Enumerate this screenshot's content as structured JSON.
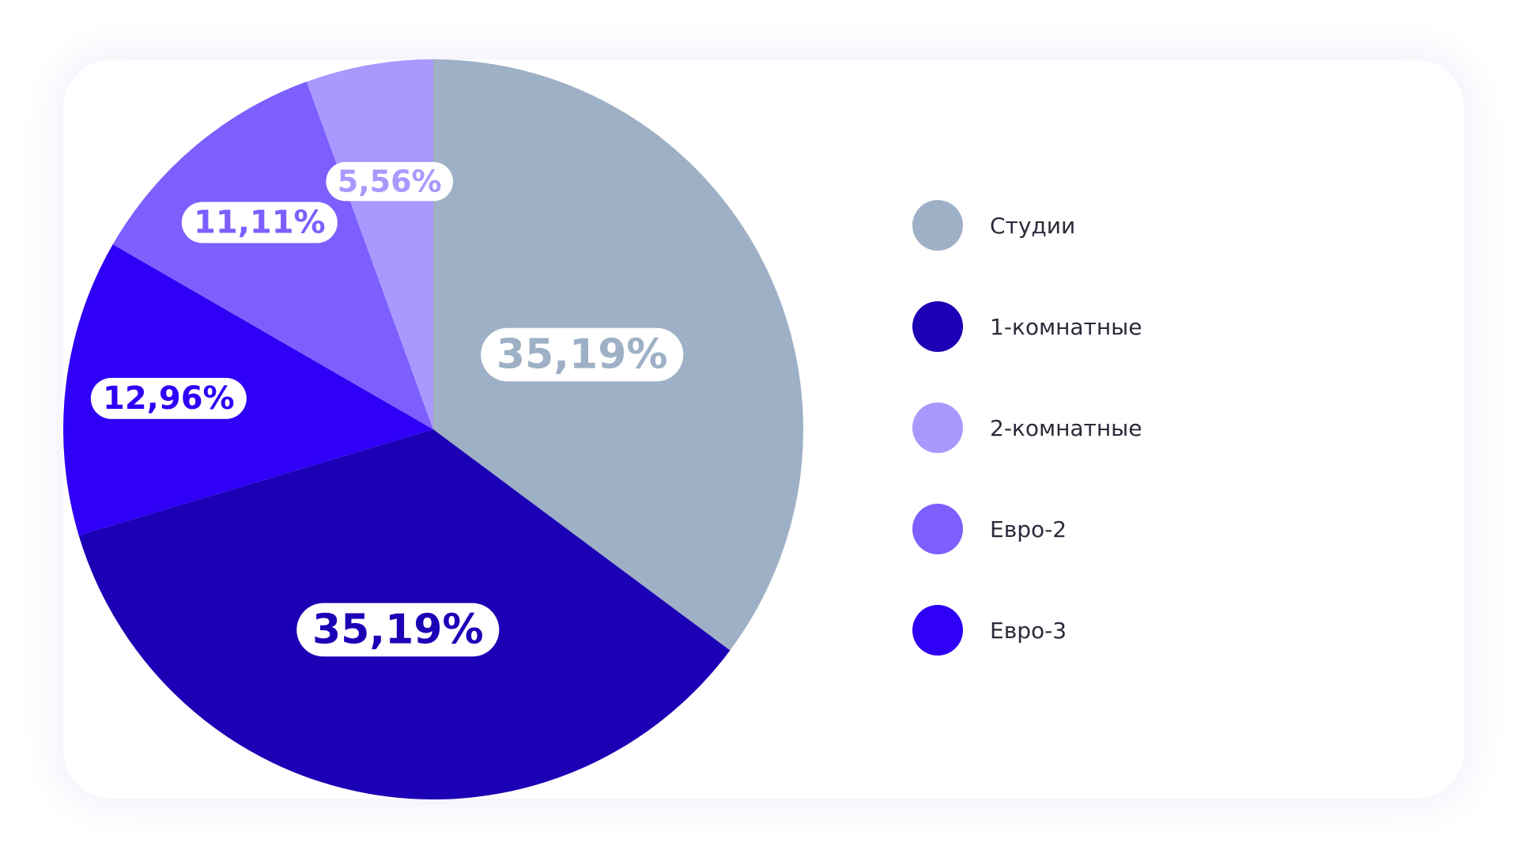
{
  "chart_data": {
    "type": "pie",
    "title": "",
    "legend_position": "right",
    "label_color": "#ffffff",
    "series": [
      {
        "name": "",
        "values": [
          35.19,
          35.19,
          12.96,
          11.11,
          5.56
        ],
        "categories": [
          "Студии",
          "1-комнатные",
          "Евро-3",
          "Евро-2",
          "2-комнатные"
        ],
        "colors": [
          "#9eb0c5",
          "#1b00b5",
          "#2f00f5",
          "#7c5ffd",
          "#a998fe"
        ]
      }
    ],
    "slices": [
      {
        "category": "Студии",
        "value": 35.19,
        "label": "35,19%",
        "color": "#9eb0c5",
        "label_color": "#9eb0c5"
      },
      {
        "category": "1-комнатные",
        "value": 35.19,
        "label": "35,19%",
        "color": "#1b00b5",
        "label_color": "#1b00b5"
      },
      {
        "category": "Евро-3",
        "value": 12.96,
        "label": "12,96%",
        "color": "#2f00f5",
        "label_color": "#2f00f5"
      },
      {
        "category": "Евро-2",
        "value": 11.11,
        "label": "11,11%",
        "color": "#7c5ffd",
        "label_color": "#7c5ffd"
      },
      {
        "category": "2-комнатные",
        "value": 5.56,
        "label": "5,56%",
        "color": "#a998fe",
        "label_color": "#a998fe"
      }
    ],
    "legend": [
      {
        "label": "Студии",
        "color": "#9eb0c5"
      },
      {
        "label": "1-комнатные",
        "color": "#1b00b5"
      },
      {
        "label": "2-комнатные",
        "color": "#a998fe"
      },
      {
        "label": "Евро-2",
        "color": "#7c5ffd"
      },
      {
        "label": "Евро-3",
        "color": "#2f00f5"
      }
    ]
  }
}
